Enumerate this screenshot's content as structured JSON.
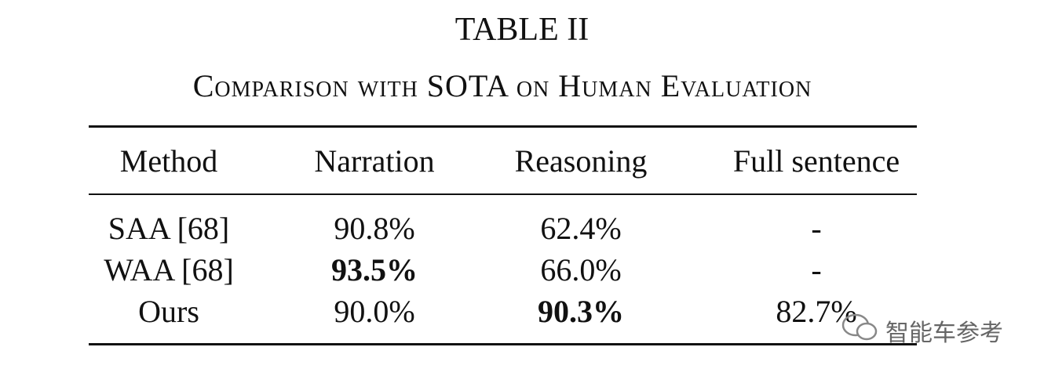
{
  "header": {
    "title": "TABLE II",
    "caption": "Comparison with SOTA on Human Evaluation"
  },
  "table": {
    "columns": [
      "Method",
      "Narration",
      "Reasoning",
      "Full sentence"
    ],
    "rows": [
      [
        "SAA [68]",
        "90.8%",
        "62.4%",
        "-"
      ],
      [
        "WAA [68]",
        {
          "text": "93.5%",
          "bold": true
        },
        "66.0%",
        "-"
      ],
      [
        "Ours",
        "90.0%",
        {
          "text": "90.3%",
          "bold": true
        },
        "82.7%"
      ]
    ]
  },
  "watermark": "智能车参考"
}
